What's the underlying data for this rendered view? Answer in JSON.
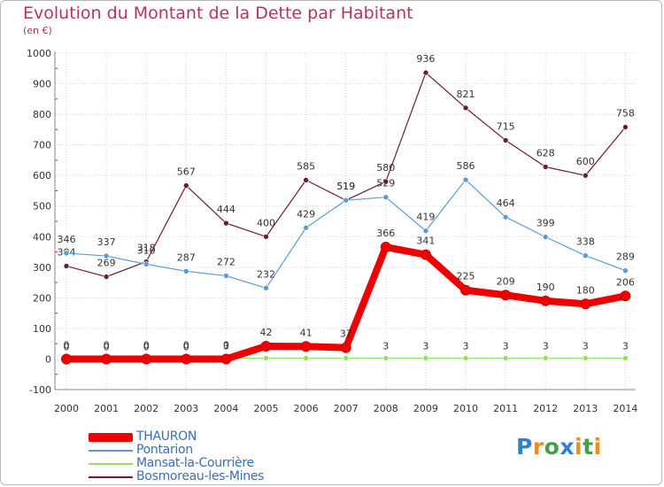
{
  "header": {
    "title": "Evolution du Montant de la Dette par Habitant",
    "unit": "(en €)"
  },
  "chart_data": {
    "type": "line",
    "title": "Evolution du Montant de la Dette par Habitant",
    "ylabel": "(en €)",
    "xlabel": "",
    "x": [
      2000,
      2001,
      2002,
      2003,
      2004,
      2005,
      2006,
      2007,
      2008,
      2009,
      2010,
      2011,
      2012,
      2013,
      2014
    ],
    "x_tick_labels": [
      "2000",
      "2001",
      "2002",
      "2003",
      "2004",
      "2005",
      "2006",
      "2007",
      "2008",
      "2009",
      "2010",
      "2011",
      "2012",
      "2013",
      "2014"
    ],
    "ylim": [
      -100,
      1000
    ],
    "y_ticks": [
      -100,
      0,
      100,
      200,
      300,
      400,
      500,
      600,
      700,
      800,
      900,
      1000
    ],
    "y_tick_labels": [
      "-100",
      "0",
      "100",
      "200",
      "300",
      "400",
      "500",
      "600",
      "700",
      "800",
      "900",
      "1000"
    ],
    "grid": true,
    "legend_position": "bottom-left",
    "series": [
      {
        "name": "THAURON",
        "color": "#ee0000",
        "values": [
          0,
          0,
          0,
          0,
          0,
          42,
          41,
          37,
          366,
          341,
          225,
          209,
          190,
          180,
          206
        ]
      },
      {
        "name": "Pontarion",
        "color": "#5b9bd5",
        "values": [
          346,
          337,
          310,
          287,
          272,
          232,
          429,
          519,
          529,
          419,
          586,
          464,
          399,
          338,
          289
        ]
      },
      {
        "name": "Mansat-la-Courrière",
        "color": "#99dd66",
        "values": [
          0,
          0,
          0,
          0,
          3,
          3,
          3,
          3,
          3,
          3,
          3,
          3,
          3,
          3,
          3
        ]
      },
      {
        "name": "Bosmoreau-les-Mines",
        "color": "#6b1f2a",
        "values": [
          304,
          269,
          318,
          567,
          444,
          400,
          585,
          519,
          580,
          936,
          821,
          715,
          628,
          600,
          758
        ]
      }
    ]
  },
  "legend": {
    "items": [
      {
        "label": "THAURON",
        "color": "#ee0000"
      },
      {
        "label": "Pontarion",
        "color": "#5b9bd5"
      },
      {
        "label": "Mansat-la-Courrière",
        "color": "#99dd66"
      },
      {
        "label": "Bosmoreau-les-Mines",
        "color": "#6b1f2a"
      }
    ]
  },
  "logo": {
    "text": "Proxiti"
  }
}
